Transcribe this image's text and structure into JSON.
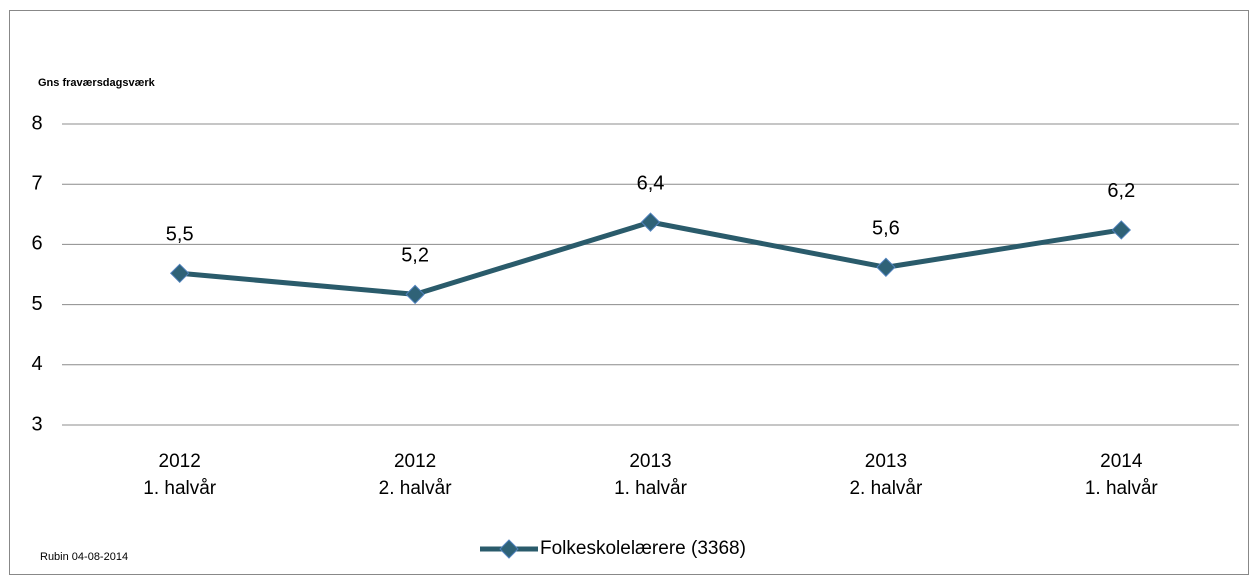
{
  "chart_data": {
    "type": "line",
    "y_label": "Gns fraværsdagsværk",
    "note": "Rubin 04-08-2014",
    "categories": [
      [
        "2012",
        "1. halvår"
      ],
      [
        "2012",
        "2. halvår"
      ],
      [
        "2013",
        "1. halvår"
      ],
      [
        "2013",
        "2. halvår"
      ],
      [
        "2014",
        "1. halvår"
      ]
    ],
    "series": [
      {
        "name": "Folkeskolelærere (3368)",
        "color": "#2a5b6b",
        "marker_color": "#2f6277",
        "values": [
          5.52,
          5.17,
          6.37,
          5.62,
          6.24
        ],
        "value_labels": [
          "5,5",
          "5,2",
          "6,4",
          "5,6",
          "6,2"
        ]
      }
    ],
    "ylim": [
      3,
      8
    ],
    "yticks": [
      3,
      4,
      5,
      6,
      7,
      8
    ],
    "grid": true,
    "legend": "bottom"
  }
}
